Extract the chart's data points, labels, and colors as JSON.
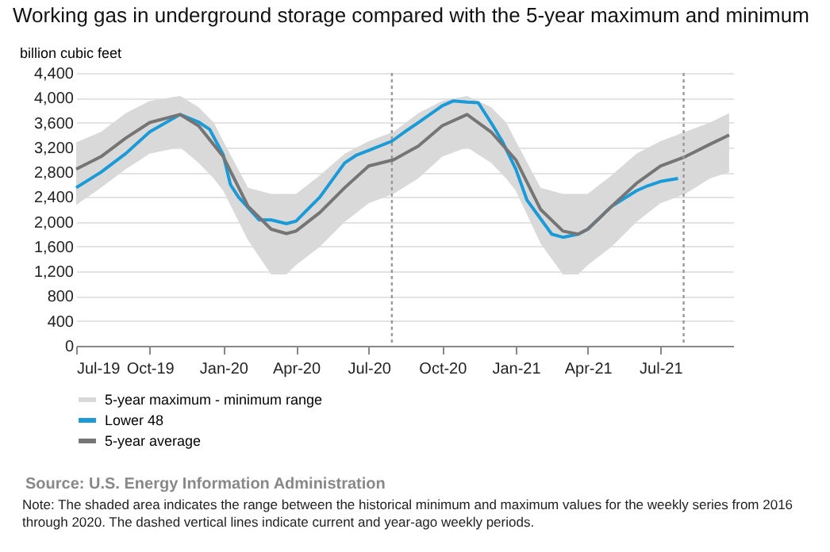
{
  "chart_data": {
    "type": "line",
    "title": "Working gas in underground  storage compared with the 5-year maximum  and minimum",
    "ylabel": "billion cubic feet",
    "xlim": [
      "2019-07-01",
      "2021-09-30"
    ],
    "xticks": [
      {
        "value": "2019-07-01",
        "label": "Jul-19"
      },
      {
        "value": "2019-10-01",
        "label": "Oct-19"
      },
      {
        "value": "2020-01-01",
        "label": "Jan-20"
      },
      {
        "value": "2020-04-01",
        "label": "Apr-20"
      },
      {
        "value": "2020-07-01",
        "label": "Jul-20"
      },
      {
        "value": "2020-10-01",
        "label": "Oct-20"
      },
      {
        "value": "2021-01-01",
        "label": "Jan-21"
      },
      {
        "value": "2021-04-01",
        "label": "Apr-21"
      },
      {
        "value": "2021-07-01",
        "label": "Jul-21"
      }
    ],
    "ylim": [
      0,
      4400
    ],
    "yticks": [
      0,
      {
        "value": 400,
        "label": "400"
      },
      {
        "value": 800,
        "label": "800"
      },
      {
        "value": 1200,
        "label": "1,200"
      },
      {
        "value": 1600,
        "label": "1,600"
      },
      {
        "value": 2000,
        "label": "2,000"
      },
      {
        "value": 2400,
        "label": "2,400"
      },
      {
        "value": 2800,
        "label": "2,800"
      },
      {
        "value": 3200,
        "label": "3,200"
      },
      {
        "value": 3600,
        "label": "3,600"
      },
      {
        "value": 4000,
        "label": "4,000"
      },
      {
        "value": 4400,
        "label": "4,400"
      }
    ],
    "grid": "y",
    "legend": "bottom",
    "series": [
      {
        "name": "5-year maximum - minimum range",
        "type": "area",
        "color": "#d9d9d9",
        "x": [
          "2019-07-01",
          "2019-08-01",
          "2019-09-01",
          "2019-10-01",
          "2019-11-08",
          "2019-12-01",
          "2019-12-20",
          "2020-01-01",
          "2020-02-01",
          "2020-03-01",
          "2020-03-20",
          "2020-04-01",
          "2020-05-01",
          "2020-06-01",
          "2020-07-01",
          "2020-08-01",
          "2020-09-01",
          "2020-10-01",
          "2020-11-01",
          "2020-12-01",
          "2020-12-20",
          "2021-01-01",
          "2021-02-01",
          "2021-03-01",
          "2021-03-20",
          "2021-04-01",
          "2021-05-01",
          "2021-06-01",
          "2021-07-01",
          "2021-08-01",
          "2021-09-01",
          "2021-09-25"
        ],
        "values": [
          null,
          null,
          null,
          null,
          null,
          null,
          null,
          null,
          null,
          null,
          null,
          null,
          null,
          null,
          null,
          null,
          null,
          null,
          null,
          null,
          null,
          null,
          null,
          null,
          null,
          null,
          null,
          null,
          null,
          null,
          null,
          null
        ],
        "lower": [
          2270,
          2550,
          2850,
          3100,
          3200,
          2950,
          2700,
          2500,
          1700,
          1150,
          1150,
          1300,
          1600,
          2000,
          2300,
          2450,
          2700,
          3050,
          3200,
          2950,
          2700,
          2500,
          1650,
          1150,
          1150,
          1300,
          1600,
          2000,
          2300,
          2450,
          2700,
          2800
        ],
        "upper": [
          3280,
          3450,
          3750,
          3950,
          4030,
          3850,
          3600,
          3300,
          2550,
          2450,
          2450,
          2450,
          2750,
          3100,
          3300,
          3450,
          3750,
          3950,
          4030,
          3850,
          3600,
          3300,
          2550,
          2450,
          2450,
          2450,
          2750,
          3100,
          3300,
          3450,
          3600,
          3750
        ]
      },
      {
        "name": "Lower 48",
        "type": "line",
        "color": "#1a9bd7",
        "x": [
          "2019-07-01",
          "2019-08-01",
          "2019-09-01",
          "2019-10-01",
          "2019-11-08",
          "2019-12-01",
          "2019-12-15",
          "2020-01-01",
          "2020-01-10",
          "2020-01-20",
          "2020-02-15",
          "2020-03-01",
          "2020-03-20",
          "2020-04-01",
          "2020-05-01",
          "2020-05-15",
          "2020-06-01",
          "2020-06-15",
          "2020-07-01",
          "2020-07-30",
          "2020-08-15",
          "2020-09-01",
          "2020-10-01",
          "2020-10-15",
          "2020-11-01",
          "2020-11-15",
          "2020-12-01",
          "2020-12-15",
          "2021-01-01",
          "2021-01-15",
          "2021-02-01",
          "2021-02-15",
          "2021-03-01",
          "2021-03-20",
          "2021-04-01",
          "2021-05-01",
          "2021-06-01",
          "2021-06-15",
          "2021-07-01",
          "2021-07-23"
        ],
        "values": [
          2550,
          2800,
          3100,
          3450,
          3730,
          3610,
          3490,
          3080,
          2600,
          2400,
          2030,
          2030,
          1970,
          2010,
          2400,
          2650,
          2950,
          3070,
          3150,
          3300,
          3450,
          3600,
          3870,
          3950,
          3930,
          3920,
          3600,
          3300,
          2850,
          2350,
          2050,
          1800,
          1750,
          1800,
          1880,
          2250,
          2500,
          2580,
          2650,
          2700
        ]
      },
      {
        "name": "5-year average",
        "type": "line",
        "color": "#757575",
        "x": [
          "2019-07-01",
          "2019-08-01",
          "2019-09-01",
          "2019-10-01",
          "2019-11-08",
          "2019-12-01",
          "2020-01-01",
          "2020-02-01",
          "2020-03-01",
          "2020-03-20",
          "2020-04-01",
          "2020-05-01",
          "2020-06-01",
          "2020-07-01",
          "2020-08-01",
          "2020-09-01",
          "2020-10-01",
          "2020-11-01",
          "2020-12-01",
          "2021-01-01",
          "2021-02-01",
          "2021-03-01",
          "2021-03-20",
          "2021-04-01",
          "2021-05-01",
          "2021-06-01",
          "2021-07-01",
          "2021-08-01",
          "2021-09-01",
          "2021-09-25"
        ],
        "values": [
          2850,
          3050,
          3350,
          3600,
          3730,
          3550,
          3050,
          2250,
          1880,
          1810,
          1850,
          2150,
          2550,
          2900,
          3000,
          3220,
          3550,
          3730,
          3450,
          3000,
          2200,
          1850,
          1800,
          1880,
          2250,
          2620,
          2900,
          3050,
          3250,
          3400
        ]
      }
    ],
    "ref_lines": [
      {
        "axis": "x",
        "value": "2020-07-30",
        "line_style": "dotted",
        "color": "#999999"
      },
      {
        "axis": "x",
        "value": "2021-07-30",
        "line_style": "dotted",
        "color": "#999999"
      }
    ],
    "annotations": [
      "Source:  U.S. Energy Information Administration",
      "Note: The shaded area indicates the range between the historical minimum and maximum values for the weekly series from 2016 through 2020. The dashed vertical lines indicate current and year-ago weekly periods."
    ]
  }
}
